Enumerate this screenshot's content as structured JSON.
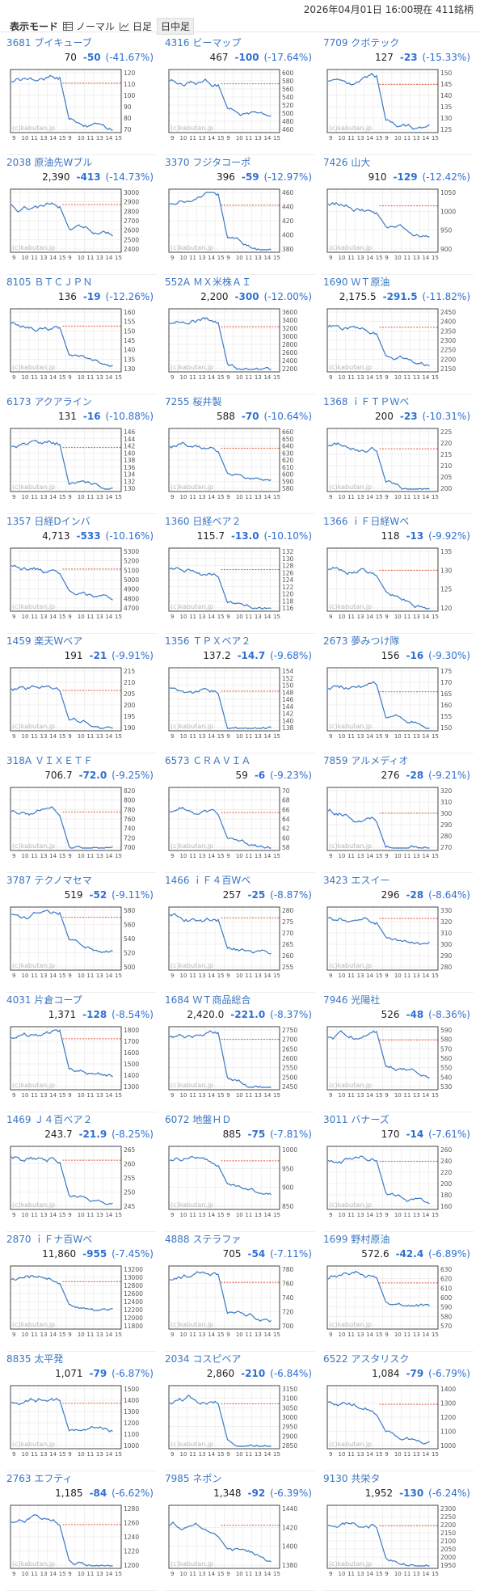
{
  "header": {
    "date_text": "2026年04月01日 16:00現在 411銘柄",
    "mode_title": "表示モード",
    "modes": [
      {
        "label": "ノーマル",
        "icon": "table-icon"
      },
      {
        "label": "日足",
        "icon": "line-chart-icon"
      },
      {
        "label": "日中足",
        "icon": null
      }
    ]
  },
  "colors": {
    "link": "#3a76c3",
    "negative": "#2f6fd1",
    "line": "#3b78c4",
    "ref": "#e05a3a",
    "grid": "#e6e6e6"
  },
  "watermark": "(c)kabutan.jp",
  "x_ticks": [
    "9",
    "10",
    "11",
    "13",
    "14",
    "15",
    "9",
    "10",
    "11",
    "13",
    "14",
    "15"
  ],
  "stocks": [
    {
      "code": "3681",
      "name": "ブイキューブ",
      "price": "70",
      "change": "-50",
      "pct": "(-41.67%)",
      "ticks": [
        "120",
        "110",
        "100",
        "90",
        "80",
        "70"
      ]
    },
    {
      "code": "4316",
      "name": "ビーマップ",
      "price": "467",
      "change": "-100",
      "pct": "(-17.64%)",
      "ticks": [
        "600",
        "580",
        "560",
        "540",
        "520",
        "500",
        "480",
        "460"
      ]
    },
    {
      "code": "7709",
      "name": "クボテック",
      "price": "127",
      "change": "-23",
      "pct": "(-15.33%)",
      "ticks": [
        "150",
        "145",
        "140",
        "135",
        "130",
        "125"
      ]
    },
    {
      "code": "2038",
      "name": "原油先Wブル",
      "price": "2,390",
      "change": "-413",
      "pct": "(-14.73%)",
      "ticks": [
        "3000",
        "2900",
        "2800",
        "2700",
        "2600",
        "2500",
        "2400"
      ]
    },
    {
      "code": "3370",
      "name": "フジタコーポ",
      "price": "396",
      "change": "-59",
      "pct": "(-12.97%)",
      "ticks": [
        "460",
        "440",
        "420",
        "400",
        "380"
      ]
    },
    {
      "code": "7426",
      "name": "山大",
      "price": "910",
      "change": "-129",
      "pct": "(-12.42%)",
      "ticks": [
        "1050",
        "1000",
        "950",
        "900"
      ]
    },
    {
      "code": "8105",
      "name": "ＢＴＣＪＰＮ",
      "price": "136",
      "change": "-19",
      "pct": "(-12.26%)",
      "ticks": [
        "160",
        "155",
        "150",
        "145",
        "140",
        "135",
        "130"
      ]
    },
    {
      "code": "552A",
      "name": "ＭＸ米株ＡＩ",
      "price": "2,200",
      "change": "-300",
      "pct": "(-12.00%)",
      "ticks": [
        "3600",
        "3400",
        "3200",
        "3000",
        "2800",
        "2600",
        "2400",
        "2200"
      ]
    },
    {
      "code": "1690",
      "name": "ＷＴ原油",
      "price": "2,175.5",
      "change": "-291.5",
      "pct": "(-11.82%)",
      "ticks": [
        "2450",
        "2400",
        "2350",
        "2300",
        "2250",
        "2200",
        "2150"
      ]
    },
    {
      "code": "6173",
      "name": "アクアライン",
      "price": "131",
      "change": "-16",
      "pct": "(-10.88%)",
      "ticks": [
        "146",
        "144",
        "142",
        "140",
        "138",
        "136",
        "134",
        "132",
        "130"
      ]
    },
    {
      "code": "7255",
      "name": "桜井製",
      "price": "588",
      "change": "-70",
      "pct": "(-10.64%)",
      "ticks": [
        "660",
        "650",
        "640",
        "630",
        "620",
        "610",
        "600",
        "590",
        "580"
      ]
    },
    {
      "code": "1368",
      "name": "ｉＦＴＰＷベ",
      "price": "200",
      "change": "-23",
      "pct": "(-10.31%)",
      "ticks": [
        "225",
        "220",
        "215",
        "210",
        "205",
        "200"
      ]
    },
    {
      "code": "1357",
      "name": "日経Dインバ",
      "price": "4,713",
      "change": "-533",
      "pct": "(-10.16%)",
      "ticks": [
        "5300",
        "5200",
        "5100",
        "5000",
        "4900",
        "4800",
        "4700"
      ]
    },
    {
      "code": "1360",
      "name": "日経ベア２",
      "price": "115.7",
      "change": "-13.0",
      "pct": "(-10.10%)",
      "ticks": [
        "132",
        "130",
        "128",
        "126",
        "124",
        "122",
        "120",
        "118",
        "116"
      ]
    },
    {
      "code": "1366",
      "name": "ｉＦ日経Wベ",
      "price": "118",
      "change": "-13",
      "pct": "(-9.92%)",
      "ticks": [
        "135",
        "130",
        "125",
        "120"
      ]
    },
    {
      "code": "1459",
      "name": "楽天Wベア",
      "price": "191",
      "change": "-21",
      "pct": "(-9.91%)",
      "ticks": [
        "215",
        "210",
        "205",
        "200",
        "195",
        "190"
      ]
    },
    {
      "code": "1356",
      "name": "ＴＰＸベア２",
      "price": "137.2",
      "change": "-14.7",
      "pct": "(-9.68%)",
      "ticks": [
        "154",
        "152",
        "150",
        "148",
        "146",
        "144",
        "142",
        "140",
        "138"
      ]
    },
    {
      "code": "2673",
      "name": "夢みつけ隊",
      "price": "156",
      "change": "-16",
      "pct": "(-9.30%)",
      "ticks": [
        "175",
        "170",
        "165",
        "160",
        "155",
        "150"
      ]
    },
    {
      "code": "318A",
      "name": "ＶＩＸＥＴＦ",
      "price": "706.7",
      "change": "-72.0",
      "pct": "(-9.25%)",
      "ticks": [
        "820",
        "800",
        "780",
        "760",
        "740",
        "720",
        "700"
      ]
    },
    {
      "code": "6573",
      "name": "ＣＲＡＶＩＡ",
      "price": "59",
      "change": "-6",
      "pct": "(-9.23%)",
      "ticks": [
        "70",
        "68",
        "66",
        "64",
        "62",
        "60",
        "58"
      ]
    },
    {
      "code": "7859",
      "name": "アルメディオ",
      "price": "276",
      "change": "-28",
      "pct": "(-9.21%)",
      "ticks": [
        "320",
        "310",
        "300",
        "290",
        "280",
        "270"
      ]
    },
    {
      "code": "3787",
      "name": "テクノマセマ",
      "price": "519",
      "change": "-52",
      "pct": "(-9.11%)",
      "ticks": [
        "580",
        "560",
        "540",
        "520",
        "500"
      ]
    },
    {
      "code": "1466",
      "name": "ｉＦ４百Wベ",
      "price": "257",
      "change": "-25",
      "pct": "(-8.87%)",
      "ticks": [
        "280",
        "275",
        "270",
        "265",
        "260",
        "255"
      ]
    },
    {
      "code": "3423",
      "name": "エスイー",
      "price": "296",
      "change": "-28",
      "pct": "(-8.64%)",
      "ticks": [
        "330",
        "320",
        "310",
        "300",
        "290",
        "280"
      ]
    },
    {
      "code": "4031",
      "name": "片倉コープ",
      "price": "1,371",
      "change": "-128",
      "pct": "(-8.54%)",
      "ticks": [
        "1800",
        "1700",
        "1600",
        "1500",
        "1400",
        "1300"
      ]
    },
    {
      "code": "1684",
      "name": "ＷＴ商品総合",
      "price": "2,420.0",
      "change": "-221.0",
      "pct": "(-8.37%)",
      "ticks": [
        "2750",
        "2700",
        "2650",
        "2600",
        "2550",
        "2500",
        "2450"
      ]
    },
    {
      "code": "7946",
      "name": "光陽社",
      "price": "526",
      "change": "-48",
      "pct": "(-8.36%)",
      "ticks": [
        "590",
        "580",
        "570",
        "560",
        "550",
        "540",
        "530"
      ]
    },
    {
      "code": "1469",
      "name": "Ｊ４百ベア２",
      "price": "243.7",
      "change": "-21.9",
      "pct": "(-8.25%)",
      "ticks": [
        "265",
        "260",
        "255",
        "250",
        "245"
      ]
    },
    {
      "code": "6072",
      "name": "地盤ＨＤ",
      "price": "885",
      "change": "-75",
      "pct": "(-7.81%)",
      "ticks": [
        "1000",
        "950",
        "900",
        "850"
      ]
    },
    {
      "code": "3011",
      "name": "バナーズ",
      "price": "170",
      "change": "-14",
      "pct": "(-7.61%)",
      "ticks": [
        "260",
        "240",
        "220",
        "200",
        "180",
        "160"
      ]
    },
    {
      "code": "2870",
      "name": "ｉＦナ百Wベ",
      "price": "11,860",
      "change": "-955",
      "pct": "(-7.45%)",
      "ticks": [
        "13200",
        "13000",
        "12800",
        "12600",
        "12400",
        "12200",
        "12000",
        "11800"
      ]
    },
    {
      "code": "4888",
      "name": "ステラファ",
      "price": "705",
      "change": "-54",
      "pct": "(-7.11%)",
      "ticks": [
        "780",
        "760",
        "740",
        "720",
        "700"
      ]
    },
    {
      "code": "1699",
      "name": "野村原油",
      "price": "572.6",
      "change": "-42.4",
      "pct": "(-6.89%)",
      "ticks": [
        "630",
        "620",
        "610",
        "600",
        "590",
        "580",
        "570"
      ]
    },
    {
      "code": "8835",
      "name": "太平発",
      "price": "1,071",
      "change": "-79",
      "pct": "(-6.87%)",
      "ticks": [
        "1500",
        "1400",
        "1300",
        "1200",
        "1100",
        "1000"
      ]
    },
    {
      "code": "2034",
      "name": "コスピベア",
      "price": "2,860",
      "change": "-210",
      "pct": "(-6.84%)",
      "ticks": [
        "3150",
        "3100",
        "3050",
        "3000",
        "2950",
        "2900",
        "2850"
      ]
    },
    {
      "code": "6522",
      "name": "アスタリスク",
      "price": "1,084",
      "change": "-79",
      "pct": "(-6.79%)",
      "ticks": [
        "1400",
        "1300",
        "1200",
        "1100",
        "1000"
      ]
    },
    {
      "code": "2763",
      "name": "エフティ",
      "price": "1,185",
      "change": "-84",
      "pct": "(-6.62%)",
      "ticks": [
        "1280",
        "1260",
        "1240",
        "1220",
        "1200"
      ]
    },
    {
      "code": "7985",
      "name": "ネポン",
      "price": "1,348",
      "change": "-92",
      "pct": "(-6.39%)",
      "ticks": [
        "1440",
        "1420",
        "1400",
        "1380"
      ]
    },
    {
      "code": "9130",
      "name": "共栄タ",
      "price": "1,952",
      "change": "-130",
      "pct": "(-6.24%)",
      "ticks": [
        "2300",
        "2250",
        "2200",
        "2150",
        "2100",
        "2050",
        "2000",
        "1950"
      ]
    }
  ]
}
